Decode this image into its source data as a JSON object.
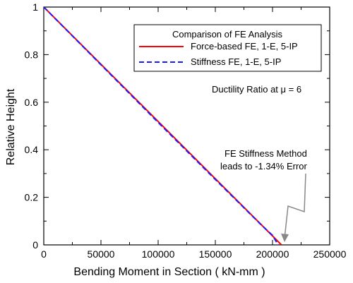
{
  "chart_data": {
    "type": "line",
    "xlabel": "Bending Moment in Section ( kN-mm )",
    "ylabel": "Relative  Height",
    "xlim": [
      0,
      250000
    ],
    "ylim": [
      0,
      1
    ],
    "x_ticks": [
      0,
      50000,
      100000,
      150000,
      200000,
      250000
    ],
    "x_tick_labels": [
      "0",
      "50000",
      "100000",
      "150000",
      "200000",
      "250000"
    ],
    "y_ticks": [
      0,
      0.2,
      0.4,
      0.6,
      0.8,
      1
    ],
    "y_tick_labels": [
      "0",
      "0.2",
      "0.4",
      "0.6",
      "0.8",
      "1"
    ],
    "grid": false,
    "legend_title": "Comparison of FE Analysis",
    "legend_position": "top-right",
    "series": [
      {
        "name": "Force-based FE, 1-E, 5-IP",
        "color": "#ff0000",
        "dash": "solid",
        "x": [
          0,
          207800
        ],
        "y": [
          1,
          0
        ]
      },
      {
        "name": "Stiffness FE, 1-E, 5-IP",
        "color": "#1a1aff",
        "dash": "dashed",
        "x": [
          0,
          100000,
          150000,
          190000,
          200000,
          205000
        ],
        "y": [
          1,
          0.515,
          0.275,
          0.085,
          0.04,
          0
        ]
      }
    ],
    "annotations": [
      {
        "id": "ductility",
        "text": "Ductility Ratio at μ = 6"
      },
      {
        "id": "error_line1",
        "text": "FE Stiffness Method"
      },
      {
        "id": "error_line2",
        "text": "leads to -1.34% Error"
      }
    ],
    "arrow_target": {
      "x": 205000,
      "y": 0
    }
  }
}
